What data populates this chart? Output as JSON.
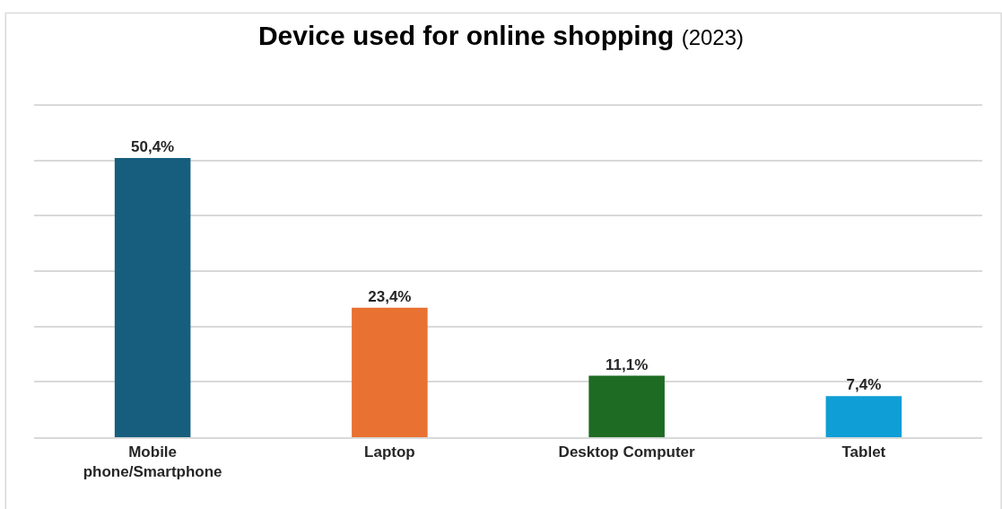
{
  "chart_data": {
    "type": "bar",
    "title": "Device used for online shopping",
    "subtitle": "(2023)",
    "categories": [
      "Mobile phone/Smartphone",
      "Laptop",
      "Desktop Computer",
      "Tablet"
    ],
    "values": [
      50.4,
      23.4,
      11.1,
      7.4
    ],
    "colors": [
      "#175e7e",
      "#e97132",
      "#1e6b24",
      "#0f9ed5"
    ],
    "value_labels": [
      "50,4%",
      "23,4%",
      "11,1%",
      "7,4%"
    ],
    "yticks": [
      {
        "value": 0,
        "label": null
      },
      {
        "value": 10,
        "label": null
      },
      {
        "value": 20,
        "label": null
      },
      {
        "value": 30,
        "label": null
      },
      {
        "value": 40,
        "label": null
      },
      {
        "value": 50,
        "label": null
      },
      {
        "value": 60,
        "label": null
      }
    ],
    "tick_labels": "x",
    "grid": "y",
    "legend": false
  }
}
